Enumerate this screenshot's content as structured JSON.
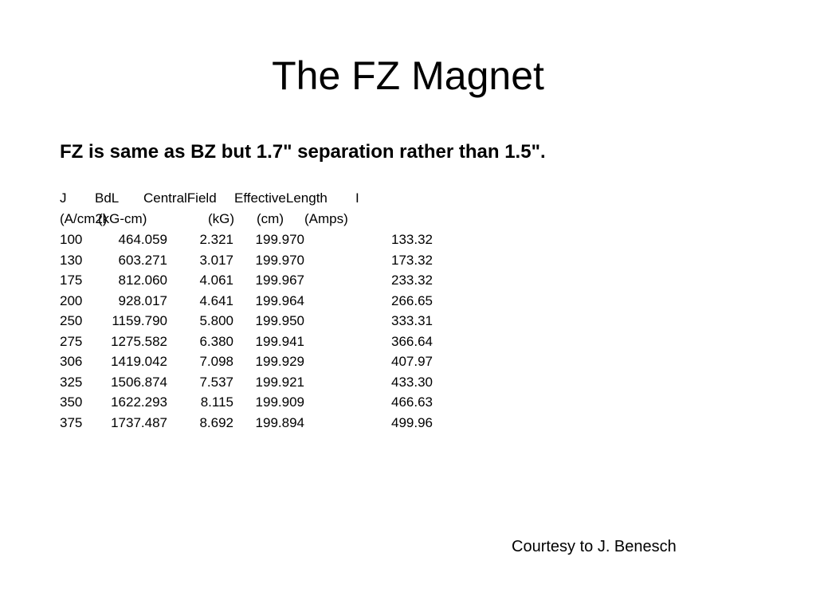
{
  "title": "The FZ Magnet",
  "subtitle": "FZ is same as BZ but 1.7\" separation rather than 1.5\".",
  "table": {
    "header": [
      [
        "J",
        "BdL",
        "CentralField",
        "EffectiveLength",
        "I"
      ],
      [
        "(A/cm2)",
        "(kG-cm)",
        "(kG)",
        "(cm)",
        "(Amps)"
      ]
    ],
    "rows": [
      [
        "100",
        "464.059",
        "2.321",
        "199.970",
        "133.32"
      ],
      [
        "130",
        "603.271",
        "3.017",
        "199.970",
        "173.32"
      ],
      [
        "175",
        "812.060",
        "4.061",
        "199.967",
        "233.32"
      ],
      [
        "200",
        "928.017",
        "4.641",
        "199.964",
        "266.65"
      ],
      [
        "250",
        "1159.790",
        "5.800",
        "199.950",
        "333.31"
      ],
      [
        "275",
        "1275.582",
        "6.380",
        "199.941",
        "366.64"
      ],
      [
        "306",
        "1419.042",
        "7.098",
        "199.929",
        "407.97"
      ],
      [
        "325",
        "1506.874",
        "7.537",
        "199.921",
        "433.30"
      ],
      [
        "350",
        "1622.293",
        "8.115",
        "199.909",
        "466.63"
      ],
      [
        "375",
        "1737.487",
        "8.692",
        "199.894",
        "499.96"
      ]
    ]
  },
  "courtesy": "Courtesy to J. Benesch"
}
